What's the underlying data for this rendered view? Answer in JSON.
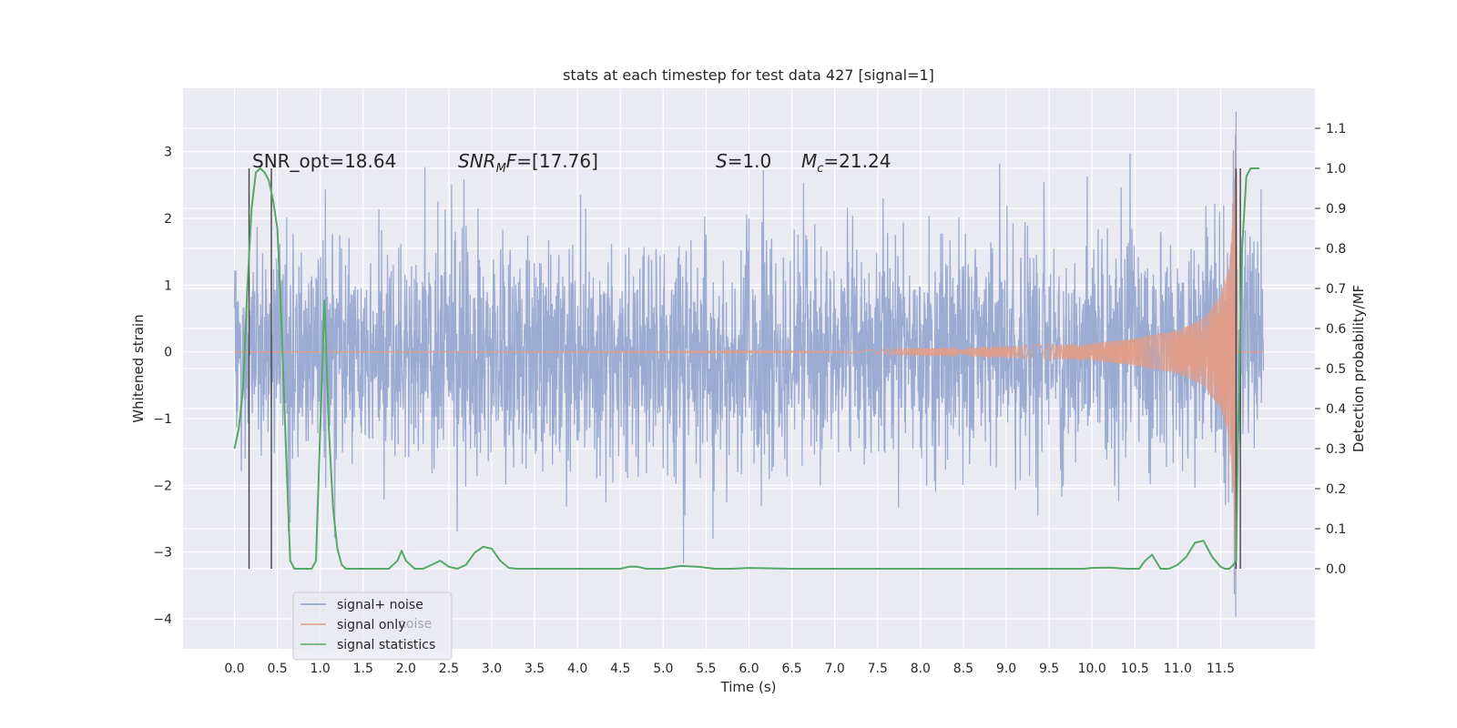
{
  "chart_data": {
    "type": "line",
    "title": "stats at each timestep for test data 427 [signal=1]",
    "xlabel": "Time (s)",
    "ylabel": "Whitened strain",
    "y2label": "Detection probability/MF",
    "xlim": [
      -0.6,
      12.6
    ],
    "ylim": [
      -4.45,
      3.95
    ],
    "y2lim": [
      -0.2,
      1.2
    ],
    "xticks": [
      0.0,
      0.5,
      1.0,
      1.5,
      2.0,
      2.5,
      3.0,
      3.5,
      4.0,
      4.5,
      5.0,
      5.5,
      6.0,
      6.5,
      7.0,
      7.5,
      8.0,
      8.5,
      9.0,
      9.5,
      10.0,
      10.5,
      11.0,
      11.5
    ],
    "xtick_labels": [
      "0.0",
      "0.5",
      "1.0",
      "1.5",
      "2.0",
      "2.5",
      "3.0",
      "3.5",
      "4.0",
      "4.5",
      "5.0",
      "5.5",
      "6.0",
      "6.5",
      "7.0",
      "7.5",
      "8.0",
      "8.5",
      "9.0",
      "9.5",
      "10.0",
      "10.5",
      "11.0",
      "11.5"
    ],
    "yticks": [
      -4,
      -3,
      -2,
      -1,
      0,
      1,
      2,
      3
    ],
    "ytick_labels": [
      "−4",
      "−3",
      "−2",
      "−1",
      "0",
      "1",
      "2",
      "3"
    ],
    "y2ticks": [
      0.0,
      0.1,
      0.2,
      0.3,
      0.4,
      0.5,
      0.6,
      0.7,
      0.8,
      0.9,
      1.0,
      1.1
    ],
    "y2tick_labels": [
      "0.0",
      "0.1",
      "0.2",
      "0.3",
      "0.4",
      "0.5",
      "0.6",
      "0.7",
      "0.8",
      "0.9",
      "1.0",
      "1.1"
    ],
    "grid": true,
    "legend_position": "lower-left",
    "series": [
      {
        "name": "signal+ noise",
        "color": "#8da0cb",
        "axis": "left",
        "x_range": [
          0.0,
          12.0
        ],
        "typical_range": [
          -1.6,
          1.6
        ],
        "min": -4.1,
        "max": 3.6
      },
      {
        "name": "signal only",
        "color": "#e39c86",
        "axis": "left",
        "x_range": [
          0.0,
          12.0
        ],
        "envelope": {
          "x": [
            0.0,
            7.0,
            8.0,
            9.0,
            10.0,
            10.5,
            11.0,
            11.3,
            11.5,
            11.6,
            11.65,
            11.68,
            11.7
          ],
          "amplitude": [
            0.0,
            0.01,
            0.06,
            0.09,
            0.13,
            0.2,
            0.32,
            0.5,
            0.85,
            1.3,
            2.2,
            3.6,
            0.0
          ]
        }
      },
      {
        "name": "signal statistics",
        "color": "#55a868",
        "axis": "right",
        "x": [
          0.0,
          0.05,
          0.1,
          0.15,
          0.2,
          0.25,
          0.3,
          0.35,
          0.4,
          0.45,
          0.5,
          0.55,
          0.6,
          0.65,
          0.7,
          0.8,
          0.9,
          0.95,
          1.0,
          1.05,
          1.1,
          1.15,
          1.2,
          1.25,
          1.3,
          1.4,
          1.6,
          1.8,
          1.9,
          1.95,
          2.0,
          2.1,
          2.2,
          2.3,
          2.4,
          2.5,
          2.6,
          2.7,
          2.8,
          2.9,
          3.0,
          3.1,
          3.2,
          3.3,
          3.5,
          4.0,
          4.5,
          4.6,
          4.7,
          4.8,
          5.0,
          5.2,
          5.4,
          5.6,
          5.8,
          6.0,
          6.5,
          7.0,
          7.5,
          8.0,
          8.5,
          9.0,
          9.5,
          9.9,
          10.0,
          10.2,
          10.4,
          10.55,
          10.62,
          10.7,
          10.8,
          10.9,
          11.0,
          11.1,
          11.2,
          11.3,
          11.4,
          11.5,
          11.55,
          11.6,
          11.65,
          11.68,
          11.7,
          11.75,
          11.8,
          11.85,
          11.9,
          11.95
        ],
        "values": [
          0.3,
          0.35,
          0.45,
          0.7,
          0.9,
          0.99,
          1.0,
          0.99,
          0.97,
          0.92,
          0.85,
          0.6,
          0.3,
          0.02,
          0.0,
          0.0,
          0.0,
          0.02,
          0.35,
          0.67,
          0.35,
          0.15,
          0.05,
          0.01,
          0.0,
          0.0,
          0.0,
          0.0,
          0.02,
          0.045,
          0.02,
          0.0,
          0.0,
          0.01,
          0.02,
          0.005,
          0.0,
          0.01,
          0.04,
          0.055,
          0.05,
          0.02,
          0.002,
          0.0,
          0.0,
          0.0,
          0.0,
          0.005,
          0.005,
          0.0,
          0.0,
          0.007,
          0.005,
          0.0,
          0.0,
          0.002,
          0.0,
          0.0,
          0.0,
          0.0,
          0.0,
          0.0,
          0.0,
          0.0,
          0.002,
          0.003,
          0.0,
          0.0,
          0.02,
          0.035,
          0.0,
          0.0,
          0.01,
          0.03,
          0.065,
          0.07,
          0.03,
          0.005,
          0.0,
          0.0,
          0.01,
          0.02,
          0.3,
          0.8,
          0.98,
          1.0,
          1.0,
          1.0
        ]
      }
    ],
    "vlines": [
      {
        "x": 0.17,
        "color": "#444444"
      },
      {
        "x": 0.43,
        "color": "#444444"
      },
      {
        "x": 11.68,
        "color": "#444444"
      },
      {
        "x": 11.73,
        "color": "#444444"
      }
    ],
    "annotations": [
      {
        "id": "snr-opt",
        "text": "SNR_opt=18.64"
      },
      {
        "id": "snr-mf",
        "text": "SNR_MF=[17.76]"
      },
      {
        "id": "s-value",
        "text": "S=1.0"
      },
      {
        "id": "mc-value",
        "text": "M_c=21.24"
      }
    ],
    "legend": {
      "entries": [
        "signal+ noise",
        "signal only",
        "signal statistics"
      ],
      "overlap_text": "noise"
    }
  }
}
